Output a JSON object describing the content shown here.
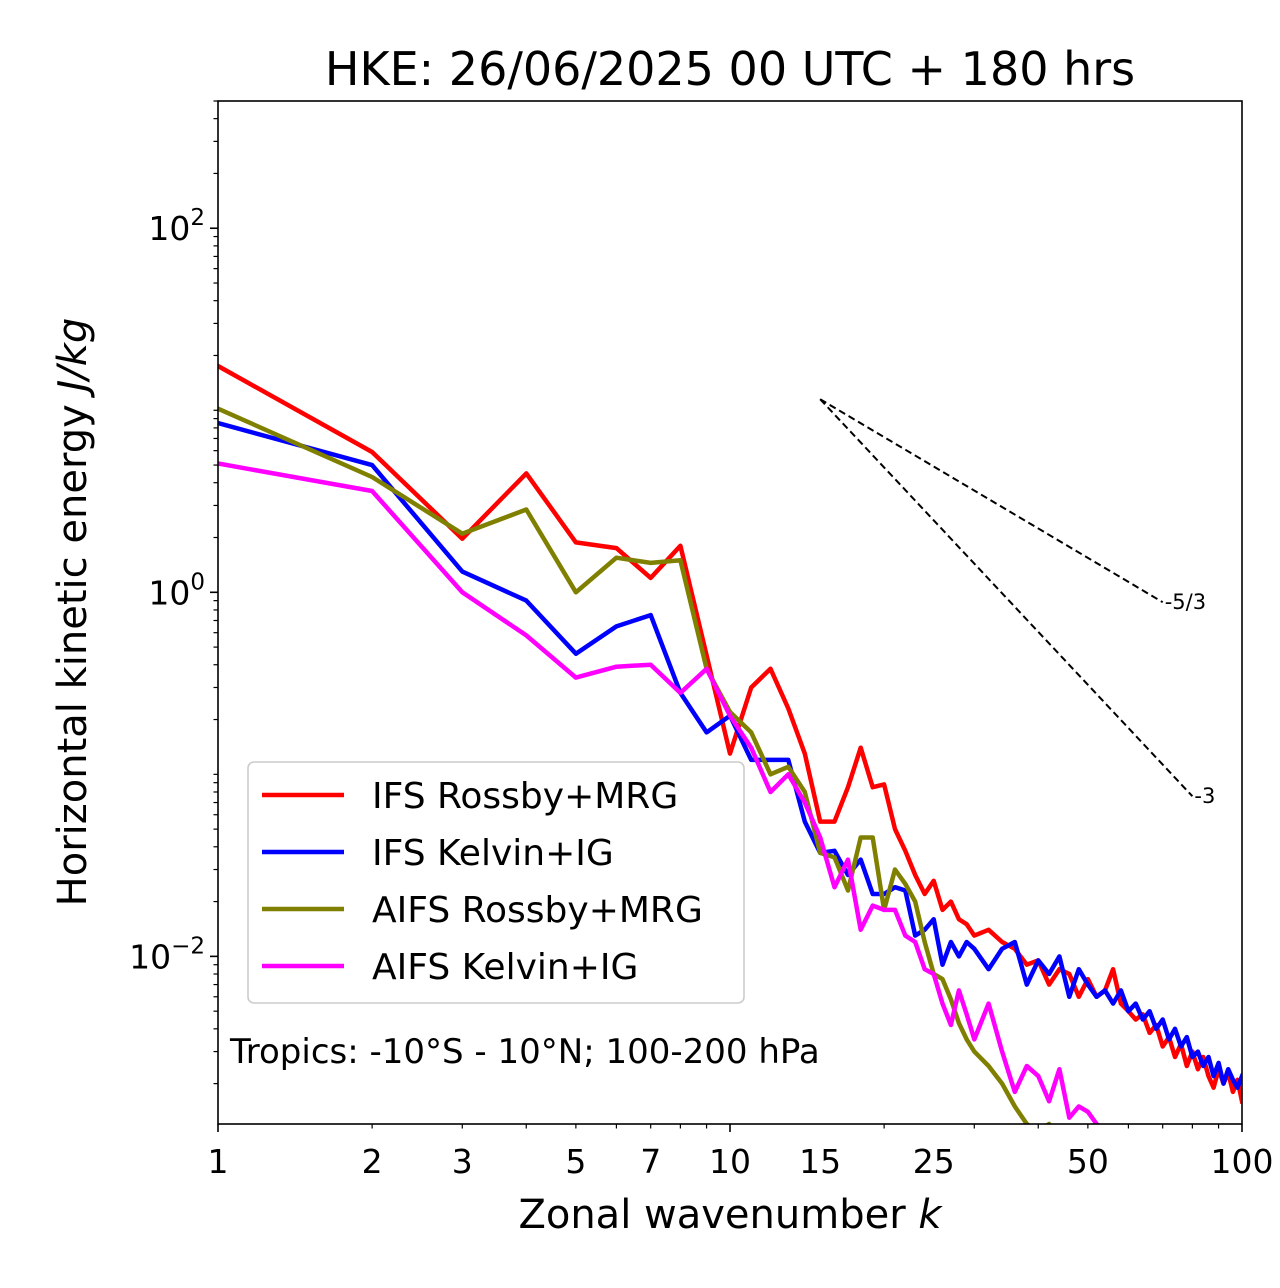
{
  "chart_data": {
    "type": "line",
    "title": "HKE: 26/06/2025 00 UTC + 180 hrs",
    "xlabel": "Zonal wavenumber",
    "xlabel_var": "k",
    "ylabel": "Horizontal kinetic energy",
    "ylabel_unit": "J/kg",
    "xscale": "log",
    "yscale": "log",
    "xlim": [
      1,
      100
    ],
    "ylim": [
      0.0012,
      500
    ],
    "x_ticks": [
      {
        "value": 1,
        "label": "1"
      },
      {
        "value": 2,
        "label": "2"
      },
      {
        "value": 3,
        "label": "3"
      },
      {
        "value": 5,
        "label": "5"
      },
      {
        "value": 7,
        "label": "7"
      },
      {
        "value": 10,
        "label": "10"
      },
      {
        "value": 15,
        "label": "15"
      },
      {
        "value": 25,
        "label": "25"
      },
      {
        "value": 50,
        "label": "50"
      },
      {
        "value": 100,
        "label": "100"
      }
    ],
    "y_ticks": [
      {
        "value": 100,
        "base": "10",
        "exp": "2"
      },
      {
        "value": 1,
        "base": "10",
        "exp": "0"
      },
      {
        "value": 0.01,
        "base": "10",
        "exp": "−2"
      }
    ],
    "grid": false,
    "legend_position": "lower-left",
    "annotation": "Tropics: -10°S - 10°N; 100-200 hPa",
    "slope_lines": [
      {
        "label": "-5/3",
        "slope": -1.6667,
        "x_start": 15,
        "y_start": 11.5,
        "x_end": 70
      },
      {
        "label": "-3",
        "slope": -3,
        "x_start": 15,
        "y_start": 11.5,
        "x_end": 80
      }
    ],
    "series": [
      {
        "name": "IFS Rossby+MRG",
        "color": "#ff0000",
        "x": [
          1,
          2,
          3,
          4,
          5,
          6,
          7,
          8,
          9,
          10,
          11,
          12,
          13,
          14,
          15,
          16,
          17,
          18,
          19,
          20,
          21,
          22,
          23,
          24,
          25,
          26,
          27,
          28,
          29,
          30,
          32,
          34,
          36,
          38,
          40,
          42,
          44,
          46,
          48,
          50,
          52,
          54,
          56,
          58,
          60,
          62,
          64,
          66,
          68,
          70,
          72,
          74,
          76,
          78,
          80,
          82,
          84,
          86,
          88,
          90,
          92,
          94,
          96,
          98,
          100
        ],
        "y": [
          17.5,
          5.9,
          1.97,
          4.5,
          1.88,
          1.75,
          1.2,
          1.8,
          0.45,
          0.13,
          0.3,
          0.38,
          0.23,
          0.13,
          0.055,
          0.055,
          0.085,
          0.14,
          0.085,
          0.088,
          0.05,
          0.038,
          0.028,
          0.022,
          0.026,
          0.018,
          0.02,
          0.016,
          0.015,
          0.013,
          0.014,
          0.012,
          0.011,
          0.009,
          0.0095,
          0.007,
          0.0085,
          0.008,
          0.006,
          0.0075,
          0.006,
          0.0065,
          0.0085,
          0.0055,
          0.005,
          0.0045,
          0.0048,
          0.0038,
          0.0042,
          0.0032,
          0.0036,
          0.0028,
          0.0033,
          0.0025,
          0.003,
          0.0024,
          0.0028,
          0.0022,
          0.0019,
          0.0024,
          0.002,
          0.0023,
          0.0018,
          0.0021,
          0.0016
        ]
      },
      {
        "name": "IFS Kelvin+IG",
        "color": "#0000ff",
        "x": [
          1,
          2,
          3,
          4,
          5,
          6,
          7,
          8,
          9,
          10,
          11,
          12,
          13,
          14,
          15,
          16,
          17,
          18,
          19,
          20,
          21,
          22,
          23,
          24,
          25,
          26,
          27,
          28,
          29,
          30,
          32,
          34,
          36,
          38,
          40,
          42,
          44,
          46,
          48,
          50,
          52,
          54,
          56,
          58,
          60,
          62,
          64,
          66,
          68,
          70,
          72,
          74,
          76,
          78,
          80,
          82,
          84,
          86,
          88,
          90,
          92,
          94,
          96,
          98,
          100
        ],
        "y": [
          8.5,
          5.0,
          1.3,
          0.9,
          0.46,
          0.65,
          0.75,
          0.28,
          0.17,
          0.21,
          0.12,
          0.12,
          0.12,
          0.055,
          0.037,
          0.038,
          0.028,
          0.034,
          0.022,
          0.022,
          0.024,
          0.023,
          0.013,
          0.014,
          0.016,
          0.009,
          0.012,
          0.01,
          0.012,
          0.011,
          0.0085,
          0.011,
          0.012,
          0.007,
          0.0095,
          0.008,
          0.01,
          0.006,
          0.0085,
          0.007,
          0.006,
          0.0065,
          0.0055,
          0.0065,
          0.005,
          0.0055,
          0.0045,
          0.005,
          0.004,
          0.0045,
          0.0035,
          0.004,
          0.0032,
          0.0036,
          0.0028,
          0.003,
          0.0025,
          0.0028,
          0.0022,
          0.0026,
          0.002,
          0.0024,
          0.0021,
          0.0019,
          0.0022
        ]
      },
      {
        "name": "AIFS Rossby+MRG",
        "color": "#808000",
        "x": [
          1,
          2,
          3,
          4,
          5,
          6,
          7,
          8,
          9,
          10,
          11,
          12,
          13,
          14,
          15,
          16,
          17,
          18,
          19,
          20,
          21,
          22,
          23,
          24,
          25,
          26,
          27,
          28,
          29,
          30,
          32,
          34,
          36,
          38,
          40,
          42,
          44,
          46
        ],
        "y": [
          10.2,
          4.3,
          2.1,
          2.85,
          1.0,
          1.55,
          1.45,
          1.5,
          0.38,
          0.22,
          0.17,
          0.1,
          0.11,
          0.08,
          0.037,
          0.035,
          0.023,
          0.045,
          0.045,
          0.018,
          0.03,
          0.025,
          0.02,
          0.012,
          0.008,
          0.0075,
          0.0058,
          0.0043,
          0.0035,
          0.003,
          0.0025,
          0.002,
          0.0015,
          0.0012,
          0.0011,
          0.0012,
          0.001,
          0.0009
        ]
      },
      {
        "name": "AIFS Kelvin+IG",
        "color": "#ff00ff",
        "x": [
          1,
          2,
          3,
          4,
          5,
          6,
          7,
          8,
          9,
          10,
          11,
          12,
          13,
          14,
          15,
          16,
          17,
          18,
          19,
          20,
          21,
          22,
          23,
          24,
          25,
          26,
          27,
          28,
          29,
          30,
          32,
          34,
          36,
          38,
          40,
          42,
          44,
          46,
          48,
          50,
          52,
          54
        ],
        "y": [
          5.1,
          3.6,
          1.0,
          0.58,
          0.34,
          0.39,
          0.4,
          0.28,
          0.38,
          0.21,
          0.14,
          0.08,
          0.1,
          0.07,
          0.045,
          0.024,
          0.034,
          0.014,
          0.019,
          0.018,
          0.018,
          0.013,
          0.012,
          0.0085,
          0.008,
          0.0055,
          0.0042,
          0.0065,
          0.0048,
          0.0035,
          0.0055,
          0.003,
          0.0018,
          0.0025,
          0.0022,
          0.0016,
          0.0024,
          0.0013,
          0.0015,
          0.0014,
          0.0012,
          0.0011
        ]
      }
    ]
  }
}
